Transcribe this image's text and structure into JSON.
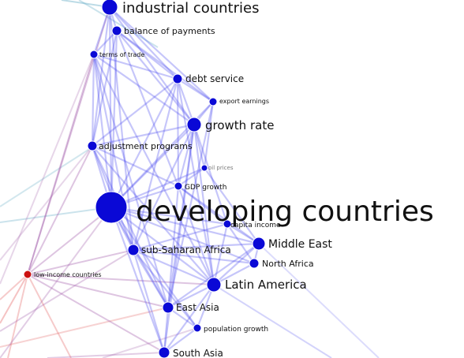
{
  "colors": {
    "node_blue": "#0a08d6",
    "node_red": "#cc1010",
    "edge_blue": "#4f4ff0",
    "edge_red": "#e66a6a",
    "edge_purple": "#a05aa8",
    "edge_teal": "#6ab0c8"
  },
  "nodes": {
    "industrial": {
      "label": "industrial countries",
      "color": "blue"
    },
    "balance": {
      "label": "balance of payments",
      "color": "blue"
    },
    "terms": {
      "label": "terms of trade",
      "color": "blue"
    },
    "debt": {
      "label": "debt service",
      "color": "blue"
    },
    "export": {
      "label": "export earnings",
      "color": "blue"
    },
    "growth": {
      "label": "growth rate",
      "color": "blue"
    },
    "adjustment": {
      "label": "adjustment programs",
      "color": "blue"
    },
    "oil": {
      "label": "oil prices",
      "color": "blue"
    },
    "gdp": {
      "label": "GDP growth",
      "color": "blue"
    },
    "developing": {
      "label": "developing countries",
      "color": "blue"
    },
    "capita": {
      "label": "capita income",
      "color": "blue"
    },
    "middle_east": {
      "label": "Middle East",
      "color": "blue"
    },
    "subsaharan": {
      "label": "sub-Saharan Africa",
      "color": "blue"
    },
    "north_africa": {
      "label": "North Africa",
      "color": "blue"
    },
    "low_income": {
      "label": "low-income countries",
      "color": "red"
    },
    "latin": {
      "label": "Latin America",
      "color": "blue"
    },
    "east_asia": {
      "label": "East Asia",
      "color": "blue"
    },
    "population": {
      "label": "population growth",
      "color": "blue"
    },
    "south_asia": {
      "label": "South Asia",
      "color": "blue"
    }
  },
  "edges": [
    [
      "industrial",
      "balance"
    ],
    [
      "industrial",
      "terms"
    ],
    [
      "industrial",
      "debt"
    ],
    [
      "industrial",
      "growth"
    ],
    [
      "industrial",
      "adjustment"
    ],
    [
      "industrial",
      "developing"
    ],
    [
      "industrial",
      "export"
    ],
    [
      "industrial",
      "subsaharan"
    ],
    [
      "balance",
      "terms"
    ],
    [
      "balance",
      "debt"
    ],
    [
      "balance",
      "export"
    ],
    [
      "balance",
      "growth"
    ],
    [
      "balance",
      "adjustment"
    ],
    [
      "balance",
      "developing"
    ],
    [
      "balance",
      "gdp"
    ],
    [
      "terms",
      "debt"
    ],
    [
      "terms",
      "adjustment"
    ],
    [
      "terms",
      "developing"
    ],
    [
      "terms",
      "growth"
    ],
    [
      "terms",
      "subsaharan"
    ],
    [
      "terms",
      "east_asia"
    ],
    [
      "terms",
      "latin"
    ],
    [
      "debt",
      "export"
    ],
    [
      "debt",
      "growth"
    ],
    [
      "debt",
      "developing"
    ],
    [
      "debt",
      "adjustment"
    ],
    [
      "debt",
      "latin"
    ],
    [
      "debt",
      "subsaharan"
    ],
    [
      "debt",
      "gdp"
    ],
    [
      "export",
      "growth"
    ],
    [
      "export",
      "developing"
    ],
    [
      "export",
      "oil"
    ],
    [
      "export",
      "east_asia"
    ],
    [
      "growth",
      "developing"
    ],
    [
      "growth",
      "gdp"
    ],
    [
      "growth",
      "oil"
    ],
    [
      "growth",
      "capita"
    ],
    [
      "growth",
      "subsaharan"
    ],
    [
      "growth",
      "latin"
    ],
    [
      "growth",
      "east_asia"
    ],
    [
      "growth",
      "adjustment"
    ],
    [
      "growth",
      "south_asia"
    ],
    [
      "adjustment",
      "developing"
    ],
    [
      "adjustment",
      "subsaharan"
    ],
    [
      "adjustment",
      "gdp"
    ],
    [
      "adjustment",
      "east_asia"
    ],
    [
      "adjustment",
      "latin"
    ],
    [
      "oil",
      "developing"
    ],
    [
      "oil",
      "gdp"
    ],
    [
      "oil",
      "middle_east"
    ],
    [
      "gdp",
      "developing"
    ],
    [
      "gdp",
      "capita"
    ],
    [
      "gdp",
      "latin"
    ],
    [
      "gdp",
      "east_asia"
    ],
    [
      "gdp",
      "middle_east"
    ],
    [
      "developing",
      "capita"
    ],
    [
      "developing",
      "subsaharan"
    ],
    [
      "developing",
      "middle_east"
    ],
    [
      "developing",
      "latin"
    ],
    [
      "developing",
      "east_asia"
    ],
    [
      "developing",
      "south_asia"
    ],
    [
      "developing",
      "north_africa"
    ],
    [
      "developing",
      "population"
    ],
    [
      "capita",
      "middle_east"
    ],
    [
      "capita",
      "north_africa"
    ],
    [
      "capita",
      "latin"
    ],
    [
      "capita",
      "subsaharan"
    ],
    [
      "middle_east",
      "north_africa"
    ],
    [
      "middle_east",
      "latin"
    ],
    [
      "middle_east",
      "subsaharan"
    ],
    [
      "middle_east",
      "east_asia"
    ],
    [
      "north_africa",
      "latin"
    ],
    [
      "north_africa",
      "subsaharan"
    ],
    [
      "subsaharan",
      "latin"
    ],
    [
      "subsaharan",
      "east_asia"
    ],
    [
      "subsaharan",
      "south_asia"
    ],
    [
      "subsaharan",
      "population"
    ],
    [
      "latin",
      "east_asia"
    ],
    [
      "latin",
      "south_asia"
    ],
    [
      "latin",
      "population"
    ],
    [
      "east_asia",
      "south_asia"
    ],
    [
      "east_asia",
      "population"
    ],
    [
      "south_asia",
      "population"
    ]
  ],
  "red_edges_from_low_income": [
    "developing",
    "adjustment",
    "subsaharan",
    "east_asia",
    "south_asia",
    "latin",
    "terms",
    "industrial"
  ]
}
